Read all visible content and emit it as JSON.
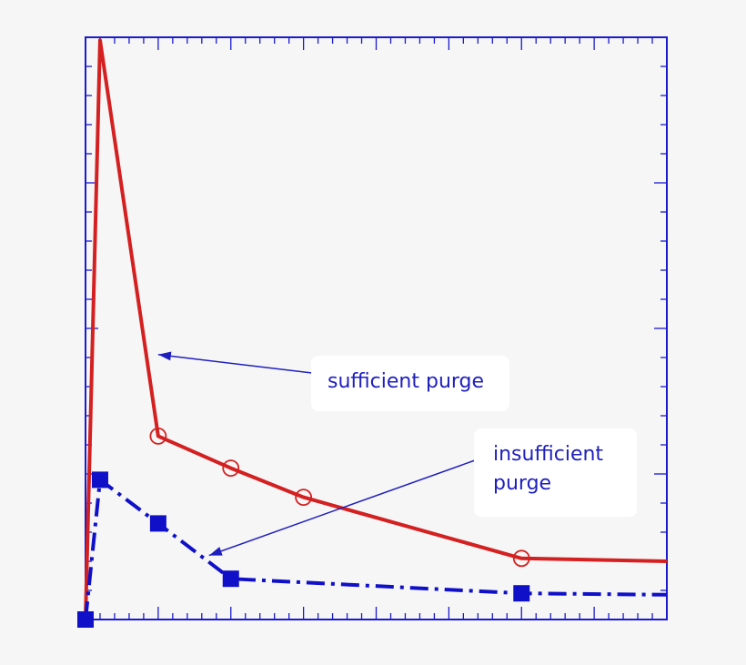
{
  "chart_data": {
    "type": "line",
    "title": "",
    "xlabel": "",
    "ylabel": "",
    "xlim": [
      0,
      40
    ],
    "ylim": [
      0,
      20
    ],
    "x_minor_tick_step": 1,
    "x_major_tick_step": 5,
    "y_minor_tick_step": 1,
    "y_major_tick_step": 5,
    "tick_labels_shown": false,
    "series": [
      {
        "color": "#d42020",
        "line_style": "solid",
        "marker": "open-circle",
        "x": [
          0,
          1,
          5,
          10,
          15,
          30,
          40
        ],
        "y": [
          0,
          19.9,
          6.3,
          5.2,
          4.2,
          2.1,
          2.0
        ],
        "marker_indices": [
          2,
          3,
          4,
          5
        ]
      },
      {
        "color": "#1010c8",
        "line_style": "dash-dot",
        "marker": "filled-square",
        "x": [
          0,
          1,
          5,
          10,
          30,
          40
        ],
        "y": [
          0,
          4.8,
          3.3,
          1.4,
          0.9,
          0.85
        ],
        "marker_indices": [
          0,
          1,
          2,
          3,
          4
        ]
      }
    ],
    "annotations": [
      {
        "text": "sufficient purge",
        "lines": [
          "sufficient purge"
        ],
        "target_series": 0,
        "target_x": 5,
        "target_y": 9.1
      },
      {
        "text": "insufficient purge",
        "lines": [
          "insufficient",
          "purge"
        ],
        "target_series": 1,
        "target_x": 8.5,
        "target_y": 2.2
      }
    ],
    "frame_color": "#1a1ad0",
    "annotation_color": "#1f1fbf"
  }
}
